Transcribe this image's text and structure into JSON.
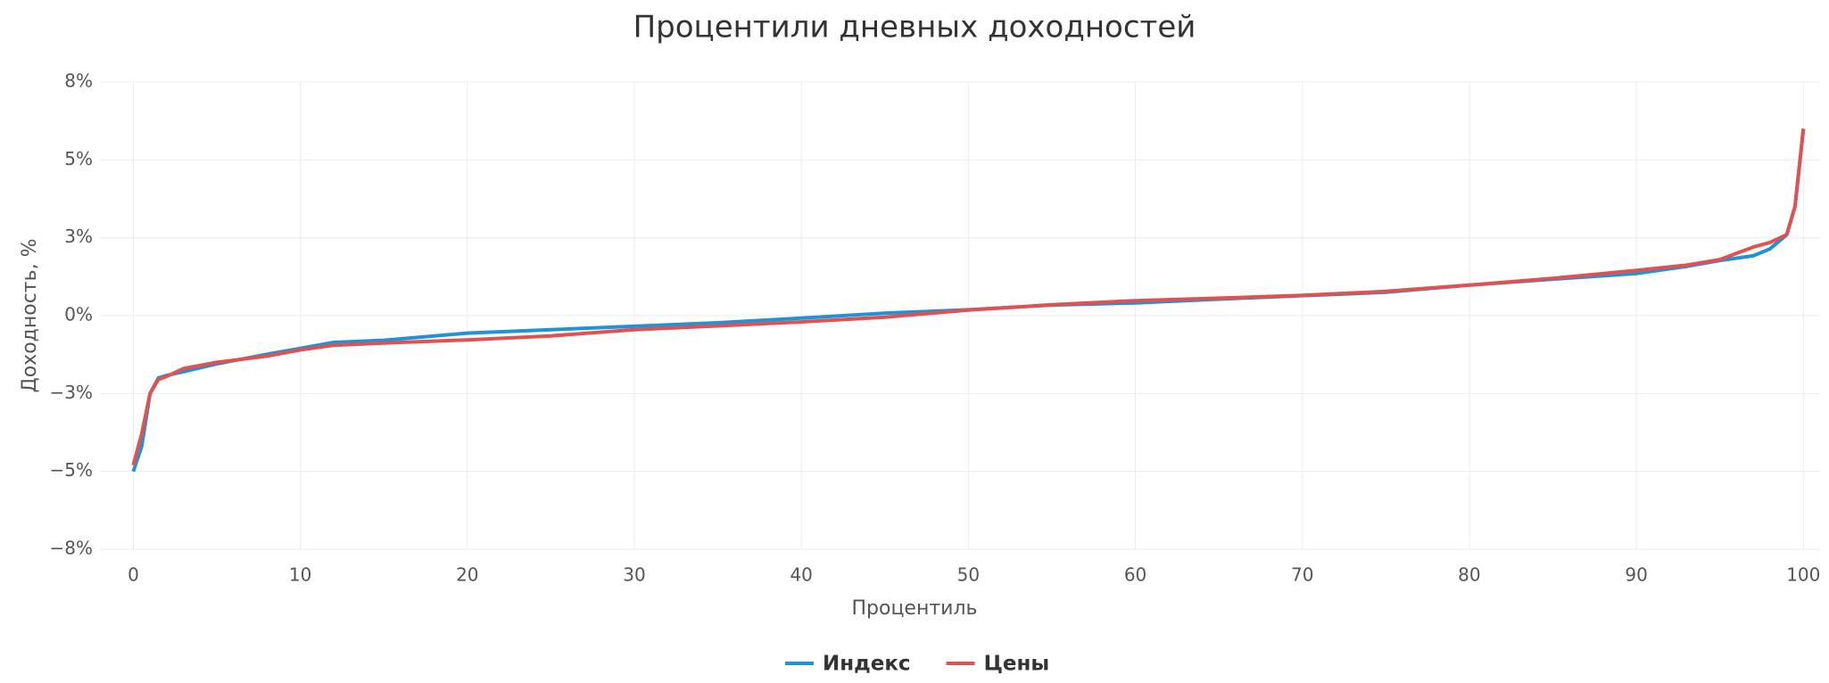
{
  "chart_data": {
    "type": "line",
    "title": "Процентили дневных доходностей",
    "x_label": "Процентиль",
    "y_label": "Доходность, %",
    "x": [
      0,
      0.5,
      1,
      1.5,
      2,
      3,
      5,
      8,
      10,
      12,
      15,
      20,
      25,
      30,
      35,
      40,
      45,
      50,
      55,
      60,
      65,
      70,
      75,
      80,
      85,
      90,
      93,
      95,
      97,
      98,
      99,
      99.5,
      100
    ],
    "series": [
      {
        "name": "Индекс",
        "color": "#1f93d6",
        "values": [
          -5.0,
          -4.2,
          -2.5,
          -2.0,
          -1.92,
          -1.8,
          -1.55,
          -1.24,
          -1.05,
          -0.86,
          -0.79,
          -0.56,
          -0.45,
          -0.34,
          -0.23,
          -0.08,
          0.08,
          0.19,
          0.34,
          0.41,
          0.53,
          0.64,
          0.75,
          0.98,
          1.17,
          1.35,
          1.58,
          1.77,
          1.92,
          2.14,
          2.6,
          3.5,
          6.0
        ]
      },
      {
        "name": "Цены",
        "color": "#e05252",
        "values": [
          -4.8,
          -3.8,
          -2.5,
          -2.05,
          -1.95,
          -1.7,
          -1.5,
          -1.3,
          -1.1,
          -0.95,
          -0.88,
          -0.78,
          -0.65,
          -0.45,
          -0.33,
          -0.2,
          -0.05,
          0.18,
          0.35,
          0.48,
          0.56,
          0.65,
          0.78,
          0.98,
          1.2,
          1.45,
          1.62,
          1.8,
          2.2,
          2.35,
          2.6,
          3.5,
          6.0
        ]
      }
    ],
    "xlim": [
      -2,
      101
    ],
    "xticks": [
      0,
      10,
      20,
      30,
      40,
      50,
      60,
      70,
      80,
      90,
      100
    ],
    "ylim": [
      -7.5,
      7.5
    ],
    "yticks": [
      {
        "value": -7.5,
        "label": "−8%"
      },
      {
        "value": -5,
        "label": "−5%"
      },
      {
        "value": -2.5,
        "label": "−3%"
      },
      {
        "value": 0,
        "label": "0%"
      },
      {
        "value": 2.5,
        "label": "3%"
      },
      {
        "value": 5,
        "label": "5%"
      },
      {
        "value": 7.5,
        "label": "8%"
      }
    ],
    "grid": true
  }
}
